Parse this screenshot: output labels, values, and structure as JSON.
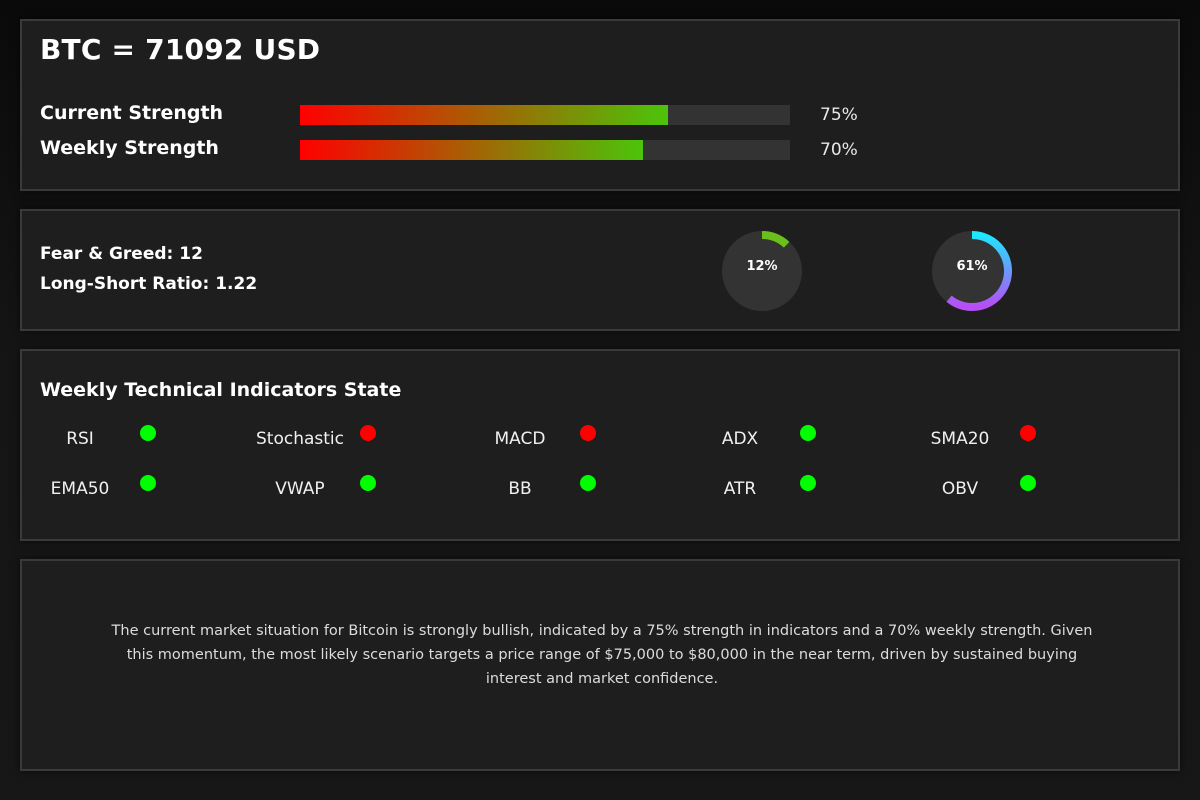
{
  "header": {
    "title": "BTC = 71092 USD"
  },
  "strength": {
    "current": {
      "label": "Current Strength",
      "value": 75,
      "display": "75%"
    },
    "weekly": {
      "label": "Weekly Strength",
      "value": 70,
      "display": "70%"
    }
  },
  "sentiment": {
    "fear_greed_label": "Fear & Greed: 12",
    "long_short_label": "Long-Short Ratio: 1.22",
    "gauges": [
      {
        "name": "fear-greed",
        "value": 12,
        "display": "12%",
        "color_start": "#6abf1a",
        "color_end": "#6abf1a"
      },
      {
        "name": "long-short",
        "value": 61,
        "display": "61%",
        "color_start": "#1ee6ff",
        "color_end": "#b84cf5"
      }
    ]
  },
  "indicators": {
    "title": "Weekly Technical Indicators State",
    "items": [
      {
        "name": "RSI",
        "state": "bullish"
      },
      {
        "name": "Stochastic",
        "state": "bearish"
      },
      {
        "name": "MACD",
        "state": "bearish"
      },
      {
        "name": "ADX",
        "state": "bullish"
      },
      {
        "name": "SMA20",
        "state": "bearish"
      },
      {
        "name": "EMA50",
        "state": "bullish"
      },
      {
        "name": "VWAP",
        "state": "bullish"
      },
      {
        "name": "BB",
        "state": "bullish"
      },
      {
        "name": "ATR",
        "state": "bullish"
      },
      {
        "name": "OBV",
        "state": "bullish"
      }
    ],
    "colors": {
      "bullish": "#00ff00",
      "bearish": "#ff0000"
    }
  },
  "summary": {
    "text": "The current market situation for Bitcoin is strongly bullish, indicated by a 75% strength in indicators and a 70% weekly strength. Given this momentum, the most likely scenario targets a price range of $75,000 to $80,000 in the near term, driven by sustained buying interest and market confidence."
  },
  "theme": {
    "panel_bg": "#1e1e1e",
    "panel_border": "#3a3a3a",
    "track_bg": "#333333",
    "gauge_bg": "#333333"
  }
}
